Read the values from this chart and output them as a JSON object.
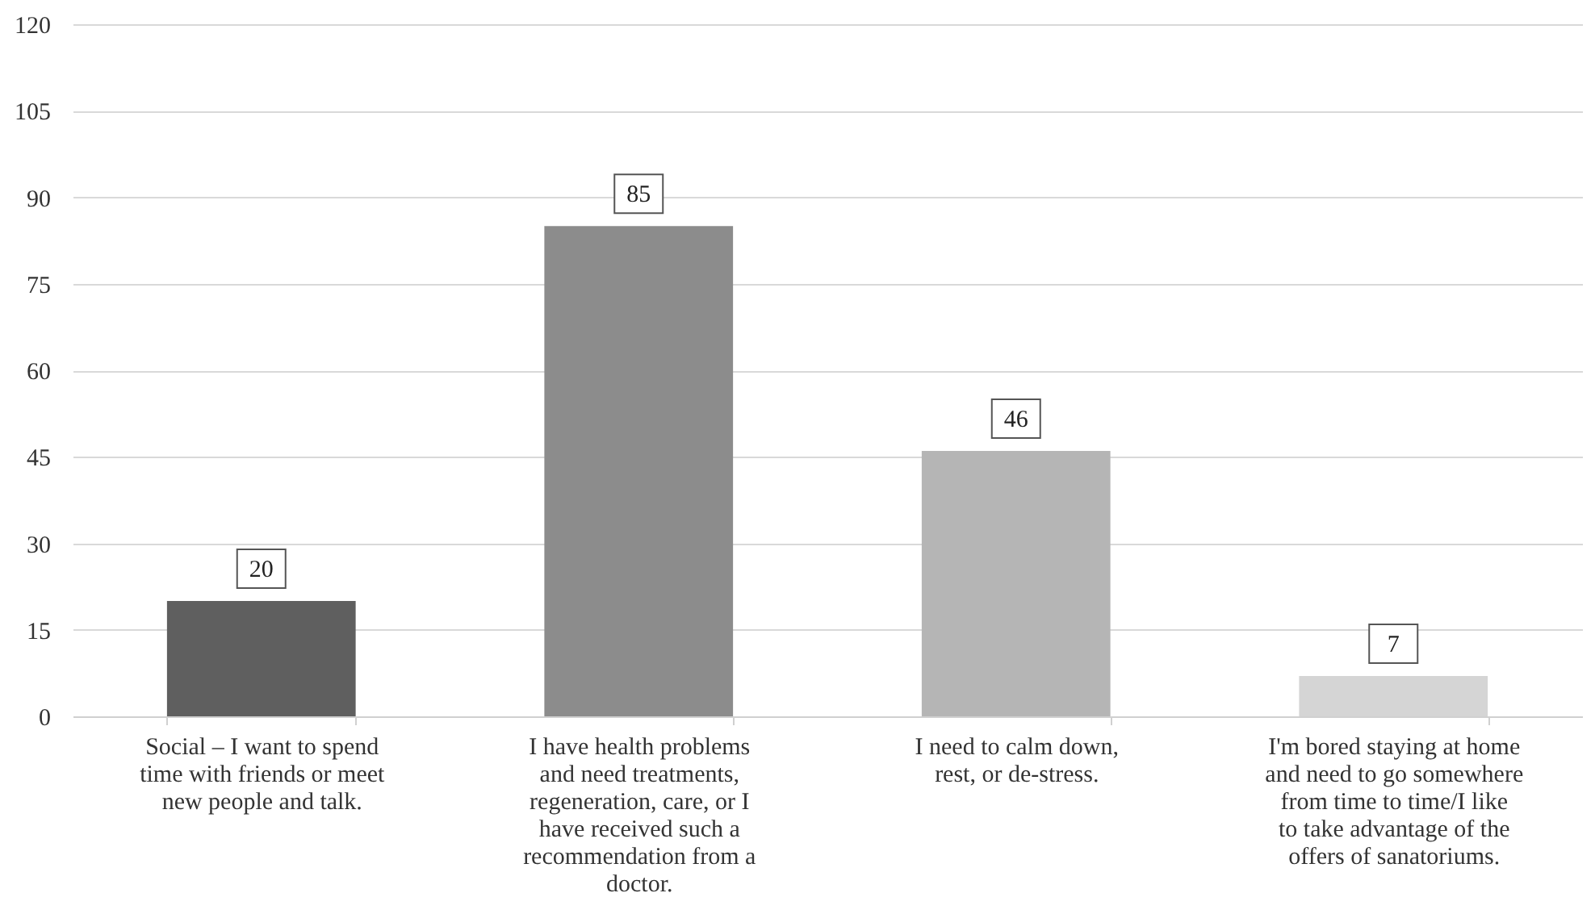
{
  "chart_data": {
    "type": "bar",
    "categories": [
      "Social – I want to spend time with friends or meet new people and talk.",
      "I have health problems and need treatments, regeneration, care, or I have received such a recommendation from a doctor.",
      "I need to calm down, rest, or de-stress.",
      "I'm bored staying at home and need to go somewhere from time to time/I like to take advantage of the offers of sanatoriums."
    ],
    "values": [
      20,
      85,
      46,
      7
    ],
    "colors": [
      "#5f5f5f",
      "#8c8c8c",
      "#b5b5b5",
      "#d5d5d5"
    ],
    "ylim": [
      0,
      120
    ],
    "yticks": [
      0,
      15,
      30,
      45,
      60,
      75,
      90,
      105,
      120
    ],
    "grid": "y",
    "data_labels": true
  }
}
